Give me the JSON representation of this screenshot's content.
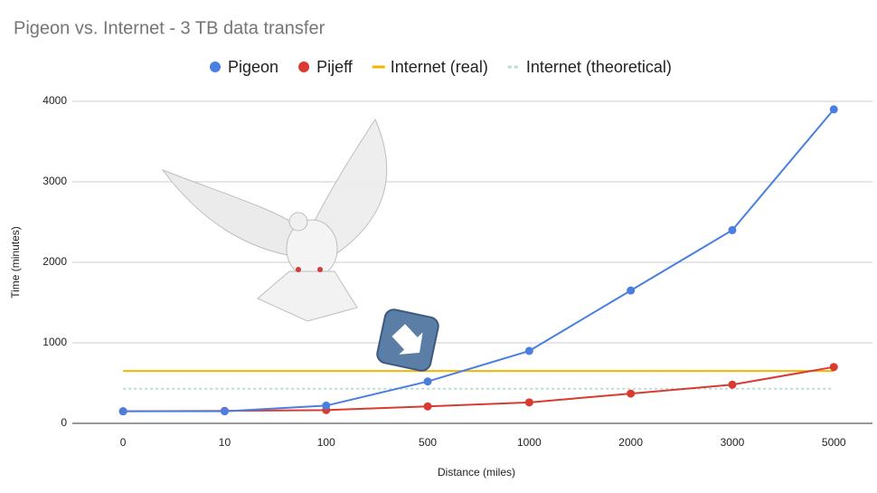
{
  "chart_data": {
    "type": "line",
    "title": "Pigeon vs. Internet - 3 TB data transfer",
    "x_label": "Distance (miles)",
    "y_label": "Time (minutes)",
    "categories": [
      "0",
      "10",
      "100",
      "500",
      "1000",
      "2000",
      "3000",
      "5000"
    ],
    "series": [
      {
        "name": "Pigeon",
        "color": "#4a7fe0",
        "marker": true,
        "values": [
          150,
          150,
          220,
          520,
          900,
          1650,
          2400,
          3900
        ]
      },
      {
        "name": "Pijeff",
        "color": "#d93a32",
        "marker": true,
        "values": [
          150,
          155,
          165,
          210,
          260,
          370,
          480,
          700
        ]
      },
      {
        "name": "Internet (real)",
        "color": "#f4b400",
        "marker": false,
        "values": [
          650,
          650,
          650,
          650,
          650,
          650,
          650,
          650
        ]
      },
      {
        "name": "Internet (theoretical)",
        "color": "#b9ddd5",
        "marker": false,
        "dashed": true,
        "values": [
          430,
          430,
          430,
          430,
          430,
          430,
          430,
          430
        ]
      }
    ],
    "ylim": [
      0,
      4000
    ],
    "yticks": [
      0,
      1000,
      2000,
      3000,
      4000
    ],
    "grid": true,
    "legend": "top"
  }
}
